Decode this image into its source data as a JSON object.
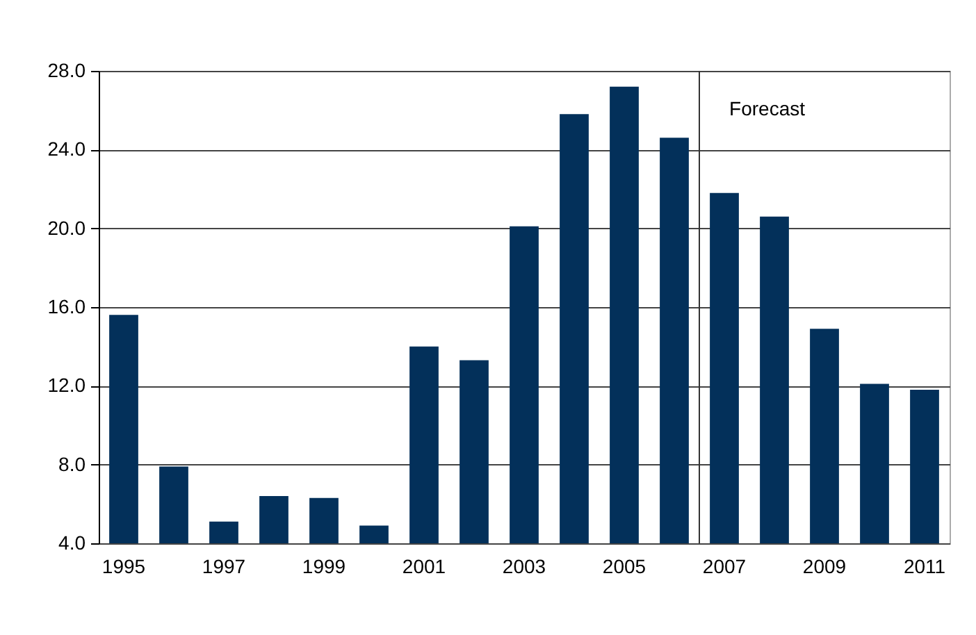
{
  "chart_data": {
    "type": "bar",
    "categories": [
      "1995",
      null,
      "1997",
      null,
      "1999",
      null,
      "2001",
      null,
      "2003",
      null,
      "2005",
      null,
      "2007",
      null,
      "2009",
      null,
      "2011"
    ],
    "values": [
      15.6,
      7.9,
      5.1,
      6.4,
      6.3,
      4.9,
      14.0,
      13.3,
      20.1,
      25.8,
      27.2,
      24.6,
      21.8,
      20.6,
      14.9,
      12.1,
      11.8
    ],
    "color": "#03305a",
    "ylim": [
      4,
      28
    ],
    "yticks": [
      {
        "value": 4,
        "label": "4.0"
      },
      {
        "value": 8,
        "label": "8.0"
      },
      {
        "value": 12,
        "label": "12.0"
      },
      {
        "value": 16,
        "label": "16.0"
      },
      {
        "value": 20,
        "label": "20.0"
      },
      {
        "value": 24,
        "label": "24.0"
      },
      {
        "value": 28,
        "label": "28.0"
      }
    ],
    "grid": "y",
    "ref_lines": [
      {
        "axis": "x",
        "value": "2007",
        "label": "Forecast"
      }
    ]
  }
}
